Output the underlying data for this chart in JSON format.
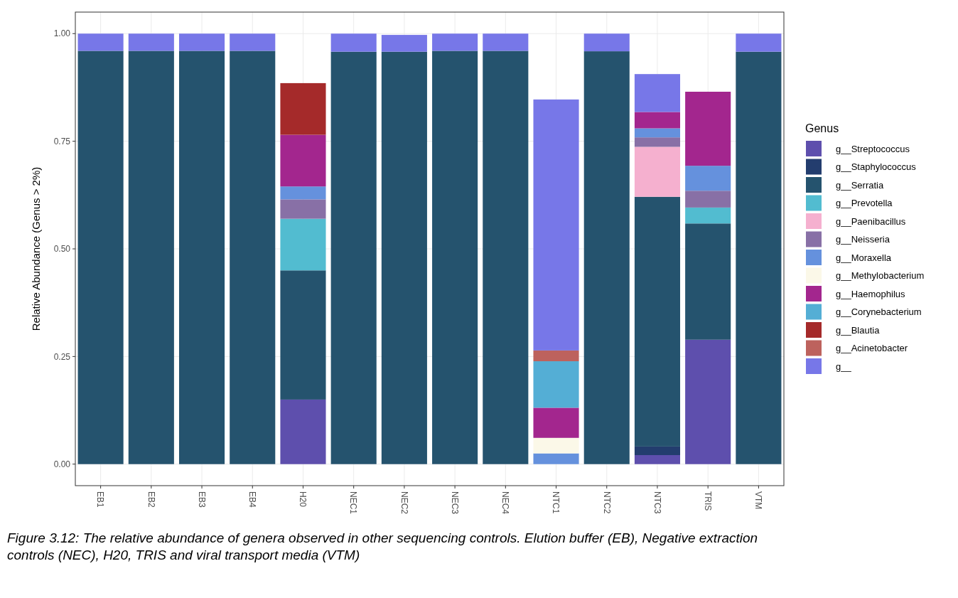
{
  "chart_data": {
    "type": "bar",
    "stacked": true,
    "ylabel": "Relative Abundance (Genus > 2%)",
    "legend_title": "Genus",
    "legend": "right",
    "grid": true,
    "categories": [
      "EB1",
      "EB2",
      "EB3",
      "EB4",
      "H20",
      "NEC1",
      "NEC2",
      "NEC3",
      "NEC4",
      "NTC1",
      "NTC2",
      "NTC3",
      "TRIS",
      "VTM"
    ],
    "ylim": [
      -0.05,
      1.05
    ],
    "yticks": [
      {
        "value": 0,
        "label": "0.00"
      },
      {
        "value": 0.25,
        "label": "0.25"
      },
      {
        "value": 0.5,
        "label": "0.50"
      },
      {
        "value": 0.75,
        "label": "0.75"
      },
      {
        "value": 1,
        "label": "1.00"
      }
    ],
    "series": [
      {
        "name": "g__Streptococcus",
        "color": "#5e4fad",
        "values": [
          null,
          null,
          null,
          null,
          0.15,
          null,
          null,
          null,
          null,
          null,
          null,
          0.021,
          0.289,
          null
        ]
      },
      {
        "name": "g__Staphylococcus",
        "color": "#233d6e",
        "values": [
          null,
          null,
          null,
          null,
          null,
          null,
          null,
          null,
          null,
          null,
          null,
          0.02,
          null,
          null
        ]
      },
      {
        "name": "g__Serratia",
        "color": "#25536e",
        "values": [
          0.96,
          0.96,
          0.96,
          0.96,
          0.3,
          0.958,
          0.958,
          0.96,
          0.96,
          null,
          0.959,
          0.58,
          0.27,
          0.958
        ]
      },
      {
        "name": "g__Prevotella",
        "color": "#52bcd0",
        "values": [
          null,
          null,
          null,
          null,
          0.12,
          null,
          null,
          null,
          null,
          null,
          null,
          null,
          0.037,
          null
        ]
      },
      {
        "name": "g__Paenibacillus",
        "color": "#f5b0cf",
        "values": [
          null,
          null,
          null,
          null,
          null,
          null,
          null,
          null,
          null,
          null,
          null,
          0.116,
          null,
          null
        ]
      },
      {
        "name": "g__Neisseria",
        "color": "#8870a6",
        "values": [
          null,
          null,
          null,
          null,
          0.045,
          null,
          null,
          null,
          null,
          null,
          null,
          0.022,
          0.039,
          null
        ]
      },
      {
        "name": "g__Moraxella",
        "color": "#6591dd",
        "values": [
          null,
          null,
          null,
          null,
          0.03,
          null,
          null,
          null,
          null,
          0.025,
          null,
          0.021,
          0.058,
          null
        ]
      },
      {
        "name": "g__Methylobacterium",
        "color": "#fbf8e8",
        "values": [
          null,
          null,
          null,
          null,
          null,
          null,
          null,
          null,
          null,
          0.036,
          null,
          null,
          null,
          null
        ]
      },
      {
        "name": "g__Haemophilus",
        "color": "#a3268e",
        "values": [
          null,
          null,
          null,
          null,
          0.12,
          null,
          null,
          null,
          null,
          0.07,
          null,
          0.038,
          0.172,
          null
        ]
      },
      {
        "name": "g__Corynebacterium",
        "color": "#54aed5",
        "values": [
          null,
          null,
          null,
          null,
          null,
          null,
          null,
          null,
          null,
          0.108,
          null,
          null,
          null,
          null
        ]
      },
      {
        "name": "g__Blautia",
        "color": "#a52a2a",
        "values": [
          null,
          null,
          null,
          null,
          0.12,
          null,
          null,
          null,
          null,
          null,
          null,
          null,
          null,
          null
        ]
      },
      {
        "name": "g__Acinetobacter",
        "color": "#bd625d",
        "values": [
          null,
          null,
          null,
          null,
          null,
          null,
          null,
          null,
          null,
          0.025,
          null,
          null,
          null,
          null
        ]
      },
      {
        "name": "g__",
        "color": "#7777e8",
        "values": [
          0.04,
          0.04,
          0.04,
          0.04,
          null,
          0.042,
          0.039,
          0.04,
          0.04,
          0.583,
          0.041,
          0.088,
          null,
          0.042
        ]
      }
    ],
    "annotations": [
      "Figure 3.12: The relative abundance of genera observed in other sequencing controls. Elution buffer (EB), Negative extraction controls (NEC), H20, TRIS and viral transport media (VTM)"
    ]
  }
}
